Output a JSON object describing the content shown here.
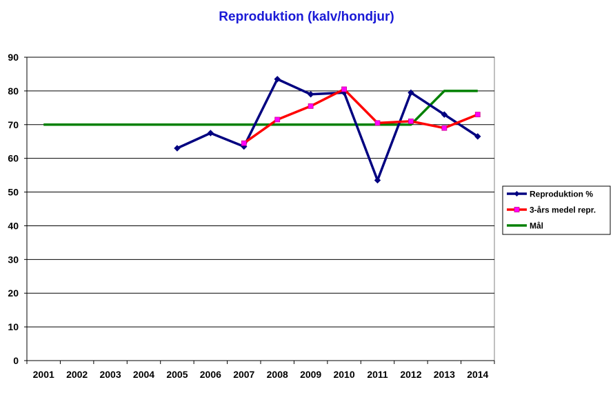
{
  "chart_data": {
    "type": "line",
    "title": "Reproduktion  (kalv/hondjur)",
    "xlabel": "",
    "ylabel": "",
    "categories": [
      "2001",
      "2002",
      "2003",
      "2004",
      "2005",
      "2006",
      "2007",
      "2008",
      "2009",
      "2010",
      "2011",
      "2012",
      "2013",
      "2014"
    ],
    "ylim": [
      0,
      90
    ],
    "yticks": [
      0,
      10,
      20,
      30,
      40,
      50,
      60,
      70,
      80,
      90
    ],
    "grid": "horizontal",
    "legend_position": "right",
    "series": [
      {
        "name": "Reproduktion %",
        "color": "#000080",
        "marker": "diamond",
        "values": [
          null,
          null,
          null,
          null,
          63,
          67.5,
          63.5,
          83.5,
          79,
          79.5,
          53.5,
          79.5,
          73,
          66.5
        ]
      },
      {
        "name": "3-års medel repr.",
        "color": "#ff0000",
        "marker": "square",
        "marker_color": "#ff00ff",
        "values": [
          null,
          null,
          null,
          null,
          null,
          null,
          64.5,
          71.5,
          75.5,
          80.5,
          70.5,
          71,
          69,
          73
        ]
      },
      {
        "name": "Mål",
        "color": "#008000",
        "marker": "none",
        "values": [
          70,
          70,
          70,
          70,
          70,
          70,
          70,
          70,
          70,
          70,
          70,
          70,
          80,
          80
        ]
      }
    ]
  }
}
